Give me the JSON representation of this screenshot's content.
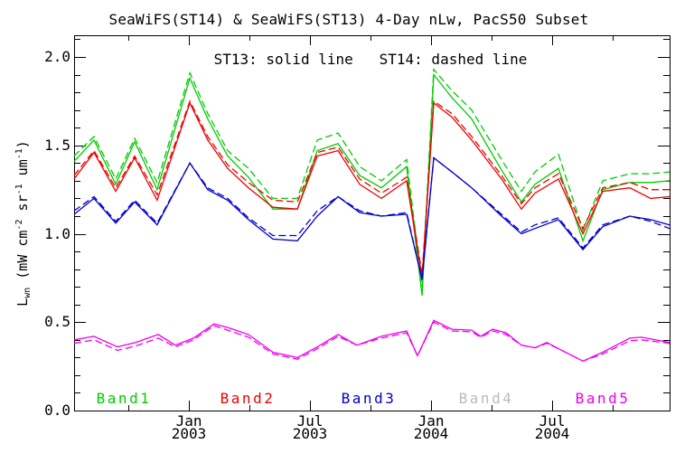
{
  "title": "SeaWiFS(ST14) & SeaWiFS(ST13) 4-Day nLw, PacS50 Subset",
  "style_note": "ST13: solid line   ST14: dashed line",
  "colors": {
    "band1": "#00cc00",
    "band2": "#ee0000",
    "band3": "#0000cc",
    "band4": "#bbbbbb",
    "band5": "#ee00ee",
    "axis": "#000000",
    "background": "#ffffff"
  },
  "chart_data": {
    "type": "line",
    "title": "SeaWiFS(ST14) & SeaWiFS(ST13) 4-Day nLw, PacS50 Subset",
    "xlabel": "",
    "ylabel": "Lwn (mW cm-2 sr-1 um-1)",
    "ylabel_segments": [
      {
        "t": "L"
      },
      {
        "t": "wn",
        "s": "sub"
      },
      {
        "t": " (mW cm"
      },
      {
        "t": "-2",
        "s": "sup"
      },
      {
        "t": " sr"
      },
      {
        "t": "-1",
        "s": "sup"
      },
      {
        "t": " um"
      },
      {
        "t": "-1",
        "s": "sup"
      },
      {
        "t": ")"
      }
    ],
    "xlim": [
      2002.526,
      2004.985
    ],
    "ylim": [
      0.0,
      2.123
    ],
    "grid": false,
    "legend_position": "inside-bottom",
    "x_major_ticks": [
      {
        "value": 2003.0,
        "label": [
          "Jan",
          "2003"
        ]
      },
      {
        "value": 2003.5,
        "label": [
          "Jul",
          "2003"
        ]
      },
      {
        "value": 2004.0,
        "label": [
          "Jan",
          "2004"
        ]
      },
      {
        "value": 2004.5,
        "label": [
          "Jul",
          "2004"
        ]
      }
    ],
    "x_minor_ticks": [
      2002.75,
      2003.25,
      2003.75,
      2004.25,
      2004.75
    ],
    "y_major_ticks": [
      {
        "value": 0.0,
        "label": "0.0"
      },
      {
        "value": 0.5,
        "label": "0.5"
      },
      {
        "value": 1.0,
        "label": "1.0"
      },
      {
        "value": 1.5,
        "label": "1.5"
      },
      {
        "value": 2.0,
        "label": "2.0"
      }
    ],
    "y_minor_step": 0.1,
    "legend": [
      {
        "label": "Band1",
        "color": "#00cc00"
      },
      {
        "label": "Band2",
        "color": "#ee0000"
      },
      {
        "label": "Band3",
        "color": "#0000cc"
      },
      {
        "label": "Band4",
        "color": "#bbbbbb"
      },
      {
        "label": "Band5",
        "color": "#ee00ee"
      }
    ],
    "series": [
      {
        "name": "Band1 ST13",
        "band": "Band1",
        "source": "ST13",
        "style": "solid",
        "color": "#00cc00",
        "x": [
          2002.526,
          2002.608,
          2002.698,
          2002.776,
          2002.869,
          2003.004,
          2003.078,
          2003.16,
          2003.246,
          2003.347,
          2003.448,
          2003.53,
          2003.616,
          2003.705,
          2003.795,
          2003.899,
          2003.963,
          2004.011,
          2004.086,
          2004.168,
          2004.291,
          2004.373,
          2004.429,
          2004.526,
          2004.627,
          2004.709,
          2004.821,
          2004.907,
          2004.985
        ],
        "y": [
          1.41,
          1.53,
          1.28,
          1.52,
          1.25,
          1.88,
          1.65,
          1.44,
          1.32,
          1.14,
          1.14,
          1.47,
          1.51,
          1.33,
          1.26,
          1.38,
          0.65,
          1.9,
          1.77,
          1.65,
          1.36,
          1.18,
          1.28,
          1.37,
          0.96,
          1.25,
          1.29,
          1.29,
          1.3
        ]
      },
      {
        "name": "Band1 ST14",
        "band": "Band1",
        "source": "ST14",
        "style": "dashed",
        "color": "#00cc00",
        "x": [
          2002.526,
          2002.608,
          2002.698,
          2002.776,
          2002.869,
          2003.004,
          2003.078,
          2003.16,
          2003.246,
          2003.347,
          2003.448,
          2003.53,
          2003.616,
          2003.705,
          2003.795,
          2003.899,
          2003.963,
          2004.011,
          2004.086,
          2004.168,
          2004.291,
          2004.373,
          2004.429,
          2004.526,
          2004.627,
          2004.709,
          2004.821,
          2004.907,
          2004.985
        ],
        "y": [
          1.44,
          1.55,
          1.31,
          1.54,
          1.29,
          1.91,
          1.68,
          1.47,
          1.37,
          1.2,
          1.2,
          1.53,
          1.57,
          1.38,
          1.3,
          1.42,
          0.7,
          1.93,
          1.81,
          1.7,
          1.42,
          1.24,
          1.35,
          1.45,
          1.02,
          1.3,
          1.34,
          1.34,
          1.35
        ]
      },
      {
        "name": "Band2 ST13",
        "band": "Band2",
        "source": "ST13",
        "style": "solid",
        "color": "#ee0000",
        "x": [
          2002.526,
          2002.608,
          2002.698,
          2002.776,
          2002.869,
          2003.004,
          2003.078,
          2003.16,
          2003.246,
          2003.347,
          2003.448,
          2003.53,
          2003.616,
          2003.705,
          2003.795,
          2003.899,
          2003.963,
          2004.011,
          2004.086,
          2004.168,
          2004.291,
          2004.373,
          2004.429,
          2004.526,
          2004.627,
          2004.709,
          2004.821,
          2004.907,
          2004.985
        ],
        "y": [
          1.31,
          1.46,
          1.24,
          1.43,
          1.19,
          1.74,
          1.53,
          1.37,
          1.26,
          1.15,
          1.14,
          1.44,
          1.47,
          1.28,
          1.2,
          1.3,
          0.75,
          1.74,
          1.66,
          1.53,
          1.31,
          1.14,
          1.23,
          1.31,
          1.0,
          1.24,
          1.26,
          1.2,
          1.21
        ]
      },
      {
        "name": "Band2 ST14",
        "band": "Band2",
        "source": "ST14",
        "style": "dashed",
        "color": "#ee0000",
        "x": [
          2002.526,
          2002.608,
          2002.698,
          2002.776,
          2002.869,
          2003.004,
          2003.078,
          2003.16,
          2003.246,
          2003.347,
          2003.448,
          2003.53,
          2003.616,
          2003.705,
          2003.795,
          2003.899,
          2003.963,
          2004.011,
          2004.086,
          2004.168,
          2004.291,
          2004.373,
          2004.429,
          2004.526,
          2004.627,
          2004.709,
          2004.821,
          2004.907,
          2004.985
        ],
        "y": [
          1.33,
          1.47,
          1.26,
          1.44,
          1.22,
          1.75,
          1.55,
          1.39,
          1.29,
          1.19,
          1.18,
          1.46,
          1.49,
          1.31,
          1.23,
          1.32,
          0.77,
          1.75,
          1.68,
          1.55,
          1.33,
          1.17,
          1.26,
          1.34,
          1.03,
          1.26,
          1.29,
          1.25,
          1.25
        ]
      },
      {
        "name": "Band3 ST13",
        "band": "Band3",
        "source": "ST13",
        "style": "solid",
        "color": "#0000cc",
        "x": [
          2002.526,
          2002.608,
          2002.698,
          2002.776,
          2002.869,
          2003.004,
          2003.078,
          2003.16,
          2003.246,
          2003.347,
          2003.448,
          2003.53,
          2003.616,
          2003.705,
          2003.795,
          2003.899,
          2003.963,
          2004.011,
          2004.086,
          2004.168,
          2004.291,
          2004.373,
          2004.429,
          2004.526,
          2004.627,
          2004.709,
          2004.821,
          2004.907,
          2004.985
        ],
        "y": [
          1.11,
          1.2,
          1.06,
          1.18,
          1.05,
          1.4,
          1.25,
          1.19,
          1.08,
          0.97,
          0.96,
          1.1,
          1.21,
          1.12,
          1.1,
          1.11,
          0.74,
          1.43,
          1.35,
          1.26,
          1.1,
          1.0,
          1.03,
          1.08,
          0.91,
          1.04,
          1.1,
          1.08,
          1.05
        ]
      },
      {
        "name": "Band3 ST14",
        "band": "Band3",
        "source": "ST14",
        "style": "dashed",
        "color": "#0000cc",
        "x": [
          2002.526,
          2002.608,
          2002.698,
          2002.776,
          2002.869,
          2003.004,
          2003.078,
          2003.16,
          2003.246,
          2003.347,
          2003.448,
          2003.53,
          2003.616,
          2003.705,
          2003.795,
          2003.899,
          2003.963,
          2004.011,
          2004.086,
          2004.168,
          2004.291,
          2004.373,
          2004.429,
          2004.526,
          2004.627,
          2004.709,
          2004.821,
          2004.907,
          2004.985
        ],
        "y": [
          1.13,
          1.21,
          1.07,
          1.19,
          1.06,
          1.4,
          1.26,
          1.2,
          1.09,
          0.99,
          0.99,
          1.13,
          1.21,
          1.13,
          1.1,
          1.12,
          0.74,
          1.43,
          1.35,
          1.26,
          1.11,
          1.01,
          1.05,
          1.09,
          0.92,
          1.05,
          1.1,
          1.07,
          1.03
        ]
      },
      {
        "name": "Band5 ST13",
        "band": "Band5",
        "source": "ST13",
        "style": "solid",
        "color": "#ee00ee",
        "x": [
          2002.526,
          2002.608,
          2002.705,
          2002.78,
          2002.873,
          2002.944,
          2003.019,
          2003.104,
          2003.16,
          2003.246,
          2003.347,
          2003.448,
          2003.53,
          2003.616,
          2003.694,
          2003.795,
          2003.899,
          2003.944,
          2004.011,
          2004.086,
          2004.168,
          2004.205,
          2004.254,
          2004.31,
          2004.373,
          2004.429,
          2004.478,
          2004.526,
          2004.627,
          2004.709,
          2004.821,
          2004.869,
          2004.985
        ],
        "y": [
          0.4,
          0.42,
          0.36,
          0.385,
          0.43,
          0.37,
          0.41,
          0.49,
          0.47,
          0.43,
          0.33,
          0.3,
          0.36,
          0.43,
          0.37,
          0.42,
          0.45,
          0.31,
          0.51,
          0.46,
          0.455,
          0.42,
          0.46,
          0.44,
          0.37,
          0.355,
          0.385,
          0.35,
          0.28,
          0.33,
          0.41,
          0.415,
          0.385
        ]
      },
      {
        "name": "Band5 ST14",
        "band": "Band5",
        "source": "ST14",
        "style": "dashed",
        "color": "#ee00ee",
        "x": [
          2002.526,
          2002.608,
          2002.705,
          2002.78,
          2002.873,
          2002.944,
          2003.019,
          2003.104,
          2003.16,
          2003.246,
          2003.347,
          2003.448,
          2003.53,
          2003.616,
          2003.694,
          2003.795,
          2003.899,
          2003.944,
          2004.011,
          2004.086,
          2004.168,
          2004.205,
          2004.254,
          2004.31,
          2004.373,
          2004.429,
          2004.478,
          2004.526,
          2004.627,
          2004.709,
          2004.821,
          2004.869,
          2004.985
        ],
        "y": [
          0.38,
          0.4,
          0.34,
          0.365,
          0.41,
          0.36,
          0.4,
          0.48,
          0.455,
          0.415,
          0.32,
          0.29,
          0.35,
          0.42,
          0.37,
          0.41,
          0.44,
          0.31,
          0.5,
          0.45,
          0.445,
          0.415,
          0.45,
          0.43,
          0.37,
          0.355,
          0.38,
          0.35,
          0.28,
          0.32,
          0.395,
          0.4,
          0.38
        ]
      }
    ]
  }
}
